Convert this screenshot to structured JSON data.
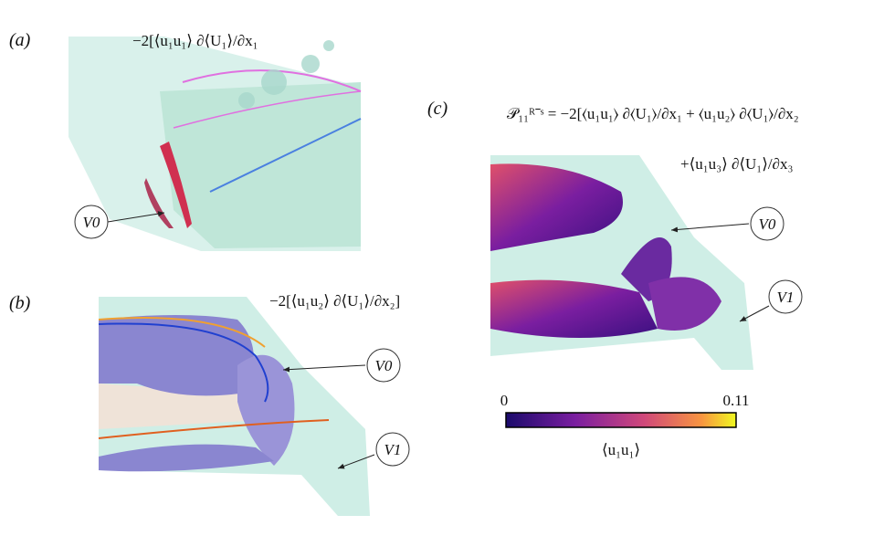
{
  "panels": [
    {
      "label": "(a)",
      "equation": "−2[⟨u₁u₁⟩ ∂⟨U₁⟩/∂x₁",
      "annotations": [
        "V0"
      ]
    },
    {
      "label": "(b)",
      "equation": "−2[⟨u₁u₂⟩ ∂⟨U₁⟩/∂x₂]",
      "annotations": [
        "V0",
        "V1"
      ]
    },
    {
      "label": "(c)",
      "equation": "𝒫₁₁ᴿ⁻ˢ = −2[⟨u₁u₁⟩ ∂⟨U₁⟩/∂x₁ + ⟨u₁u₂⟩ ∂⟨U₁⟩/∂x₂",
      "equation_cont": "+⟨u₁u₃⟩ ∂⟨U₁⟩/∂x₃",
      "annotations": [
        "V0",
        "V1"
      ]
    }
  ],
  "colorbar": {
    "min": 0,
    "max": 0.11,
    "label": "⟨u₁u₁⟩"
  }
}
